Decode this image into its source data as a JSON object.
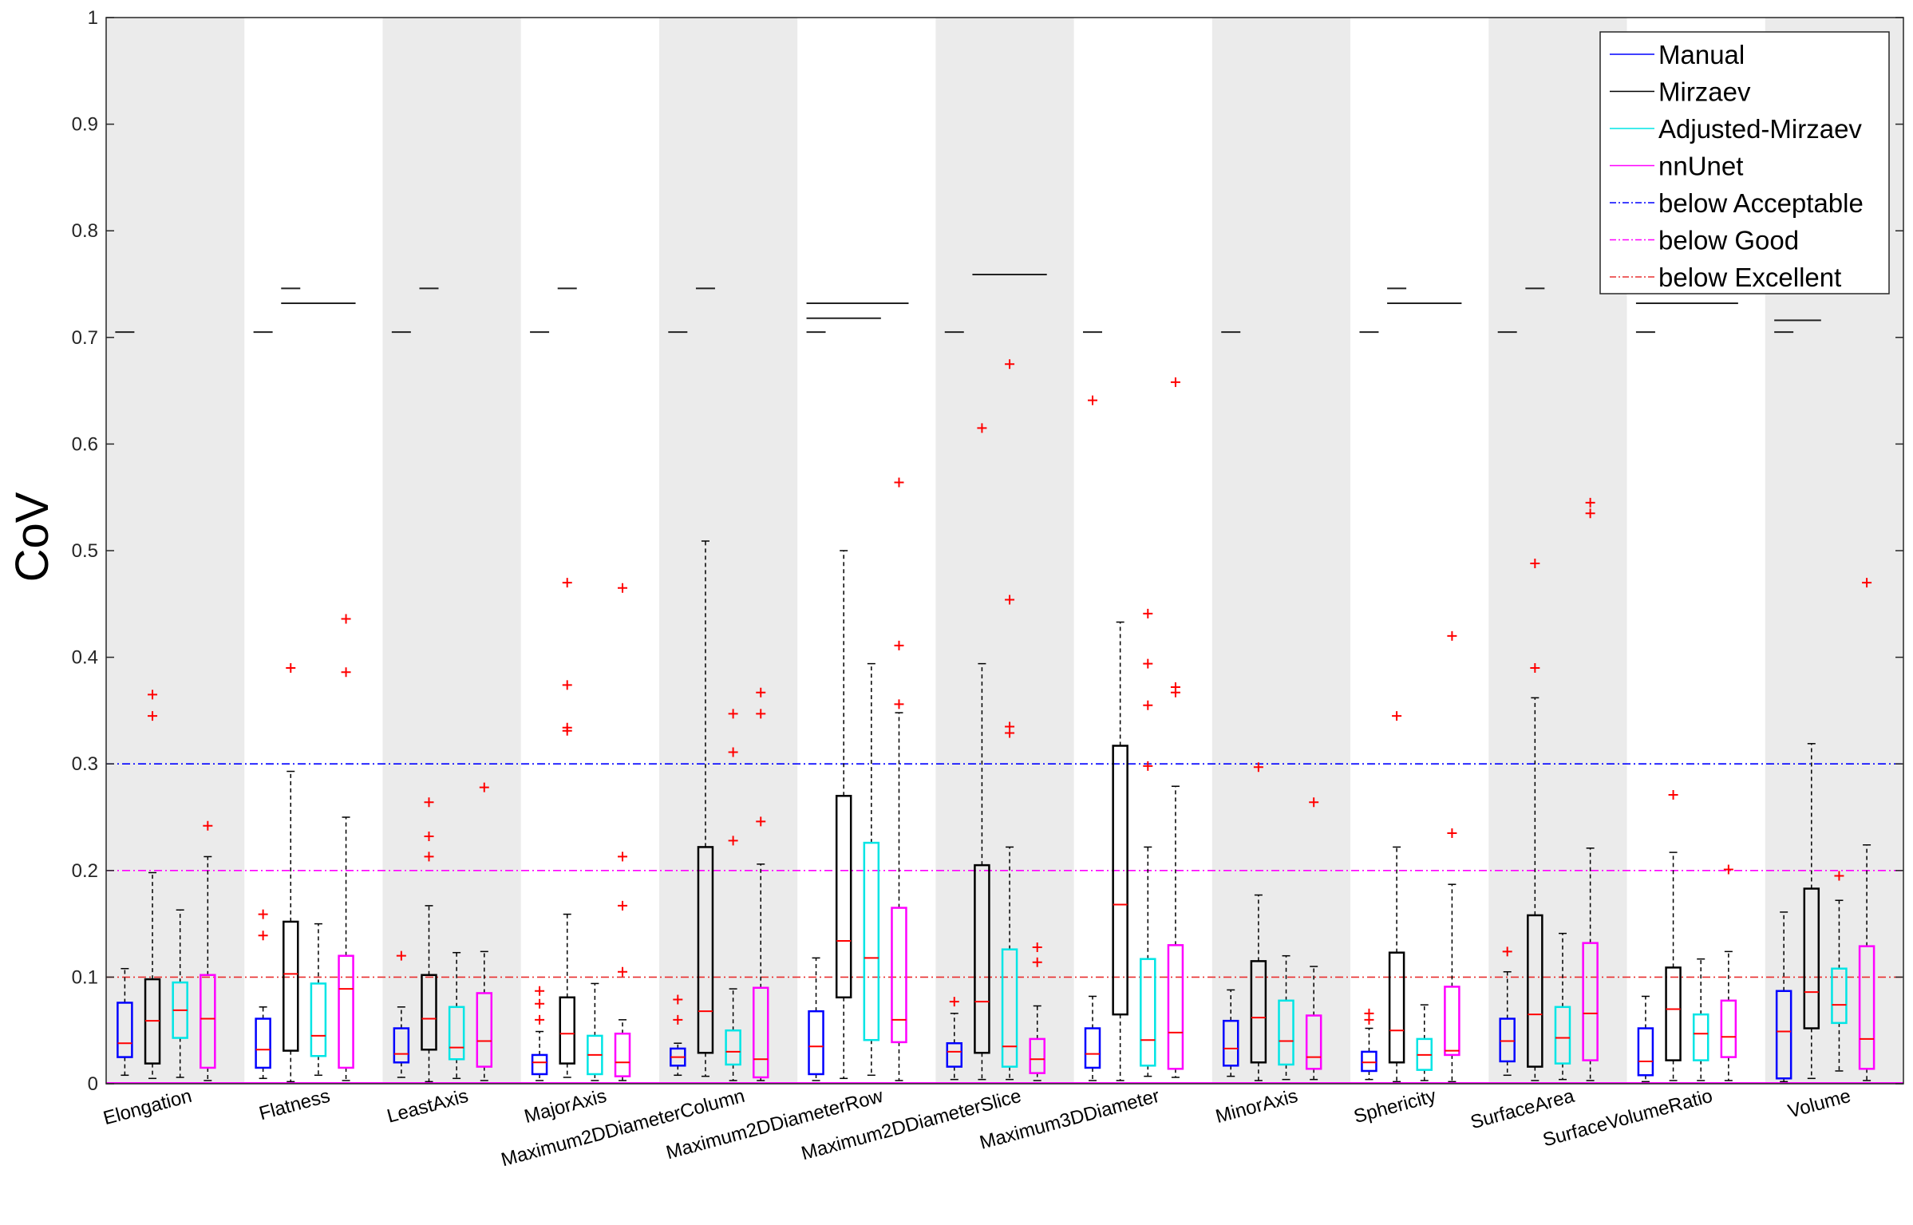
{
  "chart_data": {
    "type": "box",
    "title": "",
    "xlabel": "",
    "ylabel": "CoV",
    "ylim": [
      0,
      1
    ],
    "yticks": [
      "0",
      "0.1",
      "0.2",
      "0.3",
      "0.4",
      "0.5",
      "0.6",
      "0.7",
      "0.8",
      "0.9",
      "1"
    ],
    "categories": [
      "Elongation",
      "Flatness",
      "LeastAxis",
      "MajorAxis",
      "Maximum2DDiameterColumn",
      "Maximum2DDiameterRow",
      "Maximum2DDiameterSlice",
      "Maximum3DDiameter",
      "MinorAxis",
      "Sphericity",
      "SurfaceArea",
      "SurfaceVolumeRatio",
      "Volume"
    ],
    "series": [
      {
        "name": "Manual",
        "color": "#0000ff",
        "boxes": [
          {
            "q1": 0.025,
            "med": 0.038,
            "q3": 0.076,
            "lo": 0.008,
            "hi": 0.108,
            "out": []
          },
          {
            "q1": 0.015,
            "med": 0.032,
            "q3": 0.061,
            "lo": 0.005,
            "hi": 0.072,
            "out": [
              0.159,
              0.139
            ]
          },
          {
            "q1": 0.02,
            "med": 0.028,
            "q3": 0.052,
            "lo": 0.006,
            "hi": 0.072,
            "out": [
              0.12
            ]
          },
          {
            "q1": 0.009,
            "med": 0.02,
            "q3": 0.027,
            "lo": 0.003,
            "hi": 0.049,
            "out": [
              0.087,
              0.075,
              0.06
            ]
          },
          {
            "q1": 0.017,
            "med": 0.025,
            "q3": 0.033,
            "lo": 0.008,
            "hi": 0.038,
            "out": [
              0.079,
              0.06
            ]
          },
          {
            "q1": 0.009,
            "med": 0.035,
            "q3": 0.068,
            "lo": 0.003,
            "hi": 0.118,
            "out": []
          },
          {
            "q1": 0.016,
            "med": 0.03,
            "q3": 0.038,
            "lo": 0.004,
            "hi": 0.066,
            "out": [
              0.077
            ]
          },
          {
            "q1": 0.015,
            "med": 0.028,
            "q3": 0.052,
            "lo": 0.003,
            "hi": 0.082,
            "out": [
              0.641
            ]
          },
          {
            "q1": 0.017,
            "med": 0.033,
            "q3": 0.059,
            "lo": 0.007,
            "hi": 0.088,
            "out": []
          },
          {
            "q1": 0.012,
            "med": 0.02,
            "q3": 0.03,
            "lo": 0.004,
            "hi": 0.052,
            "out": [
              0.066,
              0.06
            ]
          },
          {
            "q1": 0.021,
            "med": 0.04,
            "q3": 0.061,
            "lo": 0.008,
            "hi": 0.105,
            "out": [
              0.124
            ]
          },
          {
            "q1": 0.008,
            "med": 0.021,
            "q3": 0.052,
            "lo": 0.002,
            "hi": 0.082,
            "out": []
          },
          {
            "q1": 0.005,
            "med": 0.049,
            "q3": 0.087,
            "lo": 0.002,
            "hi": 0.161,
            "out": []
          }
        ]
      },
      {
        "name": "Mirzaev",
        "color": "#000000",
        "boxes": [
          {
            "q1": 0.019,
            "med": 0.059,
            "q3": 0.098,
            "lo": 0.005,
            "hi": 0.198,
            "out": [
              0.365,
              0.345
            ]
          },
          {
            "q1": 0.031,
            "med": 0.103,
            "q3": 0.152,
            "lo": 0.002,
            "hi": 0.293,
            "out": [
              0.39
            ]
          },
          {
            "q1": 0.032,
            "med": 0.061,
            "q3": 0.102,
            "lo": 0.002,
            "hi": 0.167,
            "out": [
              0.264,
              0.232,
              0.213
            ]
          },
          {
            "q1": 0.019,
            "med": 0.047,
            "q3": 0.081,
            "lo": 0.006,
            "hi": 0.159,
            "out": [
              0.47,
              0.374,
              0.334,
              0.331
            ]
          },
          {
            "q1": 0.029,
            "med": 0.068,
            "q3": 0.222,
            "lo": 0.007,
            "hi": 0.509,
            "out": []
          },
          {
            "q1": 0.081,
            "med": 0.134,
            "q3": 0.27,
            "lo": 0.005,
            "hi": 0.5,
            "out": []
          },
          {
            "q1": 0.029,
            "med": 0.077,
            "q3": 0.205,
            "lo": 0.004,
            "hi": 0.394,
            "out": [
              0.615
            ]
          },
          {
            "q1": 0.065,
            "med": 0.168,
            "q3": 0.317,
            "lo": 0.003,
            "hi": 0.433,
            "out": []
          },
          {
            "q1": 0.02,
            "med": 0.062,
            "q3": 0.115,
            "lo": 0.003,
            "hi": 0.177,
            "out": [
              0.297
            ]
          },
          {
            "q1": 0.02,
            "med": 0.05,
            "q3": 0.123,
            "lo": 0.002,
            "hi": 0.222,
            "out": [
              0.345
            ]
          },
          {
            "q1": 0.016,
            "med": 0.065,
            "q3": 0.158,
            "lo": 0.003,
            "hi": 0.362,
            "out": [
              0.488,
              0.39
            ]
          },
          {
            "q1": 0.022,
            "med": 0.07,
            "q3": 0.109,
            "lo": 0.003,
            "hi": 0.217,
            "out": [
              0.271
            ]
          },
          {
            "q1": 0.052,
            "med": 0.086,
            "q3": 0.183,
            "lo": 0.005,
            "hi": 0.319,
            "out": []
          }
        ]
      },
      {
        "name": "Adjusted-Mirzaev",
        "color": "#00e5e5",
        "boxes": [
          {
            "q1": 0.043,
            "med": 0.069,
            "q3": 0.095,
            "lo": 0.006,
            "hi": 0.163,
            "out": []
          },
          {
            "q1": 0.026,
            "med": 0.045,
            "q3": 0.094,
            "lo": 0.008,
            "hi": 0.15,
            "out": []
          },
          {
            "q1": 0.023,
            "med": 0.034,
            "q3": 0.072,
            "lo": 0.005,
            "hi": 0.123,
            "out": []
          },
          {
            "q1": 0.009,
            "med": 0.027,
            "q3": 0.045,
            "lo": 0.003,
            "hi": 0.094,
            "out": []
          },
          {
            "q1": 0.018,
            "med": 0.03,
            "q3": 0.05,
            "lo": 0.003,
            "hi": 0.089,
            "out": [
              0.347,
              0.311,
              0.228
            ]
          },
          {
            "q1": 0.041,
            "med": 0.118,
            "q3": 0.226,
            "lo": 0.008,
            "hi": 0.394,
            "out": []
          },
          {
            "q1": 0.016,
            "med": 0.035,
            "q3": 0.126,
            "lo": 0.004,
            "hi": 0.222,
            "out": [
              0.675,
              0.454,
              0.335,
              0.329
            ]
          },
          {
            "q1": 0.017,
            "med": 0.041,
            "q3": 0.117,
            "lo": 0.007,
            "hi": 0.222,
            "out": [
              0.441,
              0.394,
              0.355,
              0.298
            ]
          },
          {
            "q1": 0.018,
            "med": 0.04,
            "q3": 0.078,
            "lo": 0.004,
            "hi": 0.12,
            "out": []
          },
          {
            "q1": 0.013,
            "med": 0.027,
            "q3": 0.042,
            "lo": 0.003,
            "hi": 0.074,
            "out": []
          },
          {
            "q1": 0.019,
            "med": 0.043,
            "q3": 0.072,
            "lo": 0.004,
            "hi": 0.141,
            "out": []
          },
          {
            "q1": 0.022,
            "med": 0.047,
            "q3": 0.065,
            "lo": 0.003,
            "hi": 0.117,
            "out": []
          },
          {
            "q1": 0.057,
            "med": 0.074,
            "q3": 0.108,
            "lo": 0.012,
            "hi": 0.172,
            "out": [
              0.195
            ]
          }
        ]
      },
      {
        "name": "nnUnet",
        "color": "#ff00ff",
        "boxes": [
          {
            "q1": 0.015,
            "med": 0.061,
            "q3": 0.102,
            "lo": 0.003,
            "hi": 0.213,
            "out": [
              0.242
            ]
          },
          {
            "q1": 0.015,
            "med": 0.089,
            "q3": 0.12,
            "lo": 0.003,
            "hi": 0.25,
            "out": [
              0.436,
              0.386
            ]
          },
          {
            "q1": 0.016,
            "med": 0.04,
            "q3": 0.085,
            "lo": 0.003,
            "hi": 0.124,
            "out": [
              0.278
            ]
          },
          {
            "q1": 0.007,
            "med": 0.02,
            "q3": 0.047,
            "lo": 0.003,
            "hi": 0.06,
            "out": [
              0.465,
              0.213,
              0.167,
              0.105
            ]
          },
          {
            "q1": 0.006,
            "med": 0.023,
            "q3": 0.09,
            "lo": 0.003,
            "hi": 0.206,
            "out": [
              0.367,
              0.347,
              0.246
            ]
          },
          {
            "q1": 0.039,
            "med": 0.06,
            "q3": 0.165,
            "lo": 0.003,
            "hi": 0.348,
            "out": [
              0.564,
              0.411,
              0.356
            ]
          },
          {
            "q1": 0.01,
            "med": 0.023,
            "q3": 0.042,
            "lo": 0.003,
            "hi": 0.073,
            "out": [
              0.128,
              0.114
            ]
          },
          {
            "q1": 0.014,
            "med": 0.048,
            "q3": 0.13,
            "lo": 0.006,
            "hi": 0.279,
            "out": [
              0.658,
              0.372,
              0.367
            ]
          },
          {
            "q1": 0.014,
            "med": 0.025,
            "q3": 0.064,
            "lo": 0.004,
            "hi": 0.11,
            "out": [
              0.264
            ]
          },
          {
            "q1": 0.027,
            "med": 0.031,
            "q3": 0.091,
            "lo": 0.002,
            "hi": 0.187,
            "out": [
              0.42,
              0.235
            ]
          },
          {
            "q1": 0.022,
            "med": 0.066,
            "q3": 0.132,
            "lo": 0.003,
            "hi": 0.221,
            "out": [
              0.545,
              0.535
            ]
          },
          {
            "q1": 0.025,
            "med": 0.044,
            "q3": 0.078,
            "lo": 0.003,
            "hi": 0.124,
            "out": [
              0.201
            ]
          },
          {
            "q1": 0.014,
            "med": 0.042,
            "q3": 0.129,
            "lo": 0.003,
            "hi": 0.224,
            "out": [
              0.47
            ]
          }
        ]
      }
    ],
    "reference_lines": [
      {
        "name": "below Acceptable",
        "value": 0.3,
        "color": "#0000ff"
      },
      {
        "name": "below Good",
        "value": 0.2,
        "color": "#ff00ff"
      },
      {
        "name": "below Excellent",
        "value": 0.1,
        "color": "#e83030"
      }
    ],
    "significance_bars": [
      [
        {
          "y": 0.705,
          "a": 0,
          "b": 0
        }
      ],
      [
        {
          "y": 0.705,
          "a": 0,
          "b": 0
        },
        {
          "y": 0.746,
          "a": 1,
          "b": 1
        },
        {
          "y": 0.732,
          "a": 1,
          "b": 3
        }
      ],
      [
        {
          "y": 0.705,
          "a": 0,
          "b": 0
        },
        {
          "y": 0.746,
          "a": 1,
          "b": 1
        }
      ],
      [
        {
          "y": 0.705,
          "a": 0,
          "b": 0
        },
        {
          "y": 0.746,
          "a": 1,
          "b": 1
        }
      ],
      [
        {
          "y": 0.705,
          "a": 0,
          "b": 0
        },
        {
          "y": 0.746,
          "a": 1,
          "b": 1
        }
      ],
      [
        {
          "y": 0.705,
          "a": 0,
          "b": 0
        },
        {
          "y": 0.718,
          "a": 0,
          "b": 2
        },
        {
          "y": 0.732,
          "a": 0,
          "b": 3
        }
      ],
      [
        {
          "y": 0.705,
          "a": 0,
          "b": 0
        },
        {
          "y": 0.759,
          "a": 1,
          "b": 3
        }
      ],
      [
        {
          "y": 0.705,
          "a": 0,
          "b": 0
        }
      ],
      [
        {
          "y": 0.705,
          "a": 0,
          "b": 0
        }
      ],
      [
        {
          "y": 0.705,
          "a": 0,
          "b": 0
        },
        {
          "y": 0.746,
          "a": 1,
          "b": 1
        },
        {
          "y": 0.732,
          "a": 1,
          "b": 3
        }
      ],
      [
        {
          "y": 0.705,
          "a": 0,
          "b": 0
        },
        {
          "y": 0.746,
          "a": 1,
          "b": 1
        }
      ],
      [
        {
          "y": 0.705,
          "a": 0,
          "b": 0
        },
        {
          "y": 0.732,
          "a": 0,
          "b": 3
        }
      ],
      [
        {
          "y": 0.705,
          "a": 0,
          "b": 0
        },
        {
          "y": 0.716,
          "a": 0,
          "b": 1
        }
      ]
    ],
    "legend": {
      "position": "top-right",
      "entries": [
        {
          "label": "Manual",
          "color": "#0000ff",
          "style": "solid"
        },
        {
          "label": "Mirzaev",
          "color": "#000000",
          "style": "solid"
        },
        {
          "label": "Adjusted-Mirzaev",
          "color": "#00e5e5",
          "style": "solid"
        },
        {
          "label": "nnUnet",
          "color": "#ff00ff",
          "style": "solid"
        },
        {
          "label": "below Acceptable",
          "color": "#0000ff",
          "style": "dashdot"
        },
        {
          "label": "below Good",
          "color": "#ff00ff",
          "style": "dashdot"
        },
        {
          "label": "below Excellent",
          "color": "#e83030",
          "style": "dashdot"
        }
      ]
    },
    "colors": {
      "band": "#ebebeb",
      "median": "#ff0000",
      "outlier": "#ff0000"
    }
  }
}
